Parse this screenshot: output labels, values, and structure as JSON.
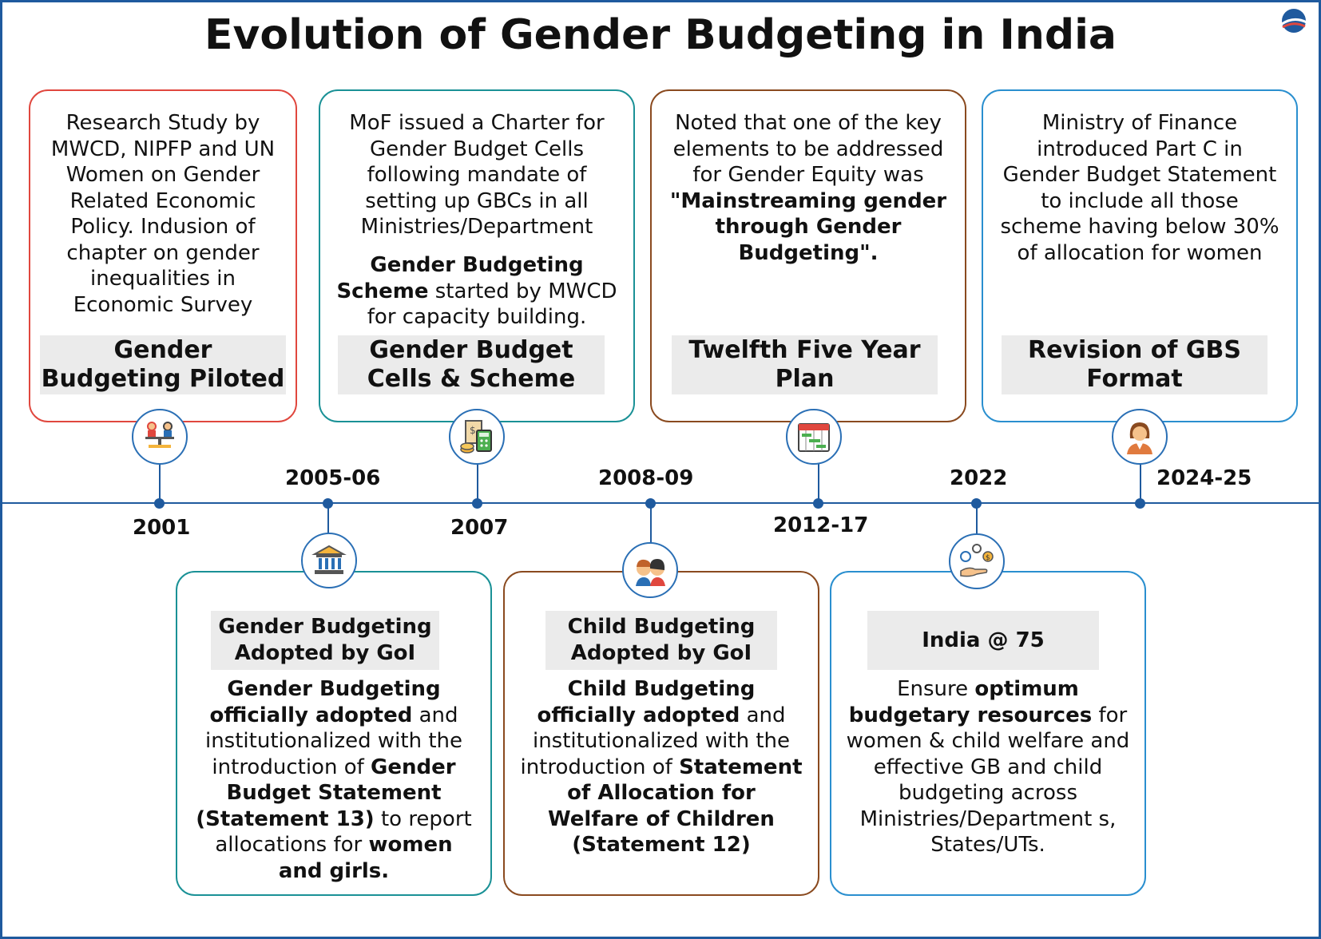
{
  "title": "Evolution of Gender Budgeting in India",
  "colors": {
    "red": "#e0473e",
    "teal": "#1a9196",
    "brown": "#8a4a1f",
    "blue": "#2a8fcf",
    "axis": "#1f5a9e",
    "tag_bg": "#ebebeb"
  },
  "top_cards": [
    {
      "year": "2001",
      "icon": "scales-gender-icon",
      "description": "Research Study by MWCD, NIPFP and UN Women on Gender Related Economic Policy. Indusion of chapter on gender inequalities in Economic Survey",
      "heading": "Gender Budgeting Piloted"
    },
    {
      "year": "2007",
      "icon": "budget-calculator-icon",
      "description_1": "MoF issued a Charter for Gender Budget Cells following mandate of setting up GBCs in all Ministries/Department",
      "description_2_bold": "Gender Budgeting Scheme",
      "description_2_rest": " started by MWCD for capacity building.",
      "heading": "Gender Budget Cells & Scheme"
    },
    {
      "year": "2012-17",
      "icon": "calendar-plan-icon",
      "description_1": "Noted that one of the key elements to be addressed for Gender Equity was",
      "description_2_bold": "\"Mainstreaming gender through Gender Budgeting\".",
      "heading": "Twelfth Five Year Plan"
    },
    {
      "year": "2024-25",
      "icon": "woman-avatar-icon",
      "description": "Ministry of Finance introduced Part C in Gender Budget Statement to include all those scheme having below 30% of allocation for women",
      "heading": "Revision of GBS Format"
    }
  ],
  "bottom_cards": [
    {
      "year": "2005-06",
      "icon": "government-building-icon",
      "heading": "Gender Budgeting Adopted by GoI",
      "d1b": "Gender Budgeting officially adopted",
      "d2": " and institutionalized with the introduction of ",
      "d3b": "Gender Budget Statement (Statement 13)",
      "d4": " to report allocations for ",
      "d5b": "women and girls."
    },
    {
      "year": "2008-09",
      "icon": "children-icon",
      "heading": "Child Budgeting Adopted by GoI",
      "d1b": "Child Budgeting officially adopted",
      "d2": " and institutionalized with the introduction of ",
      "d3b": "Statement of Allocation for Welfare of Children (Statement 12)"
    },
    {
      "year": "2022",
      "icon": "hand-resources-icon",
      "heading": "India @ 75",
      "d1": "Ensure ",
      "d2b": "optimum budgetary resources",
      "d3": " for women & child welfare and effective GB and child budgeting across Ministries/Department s, States/UTs."
    }
  ]
}
